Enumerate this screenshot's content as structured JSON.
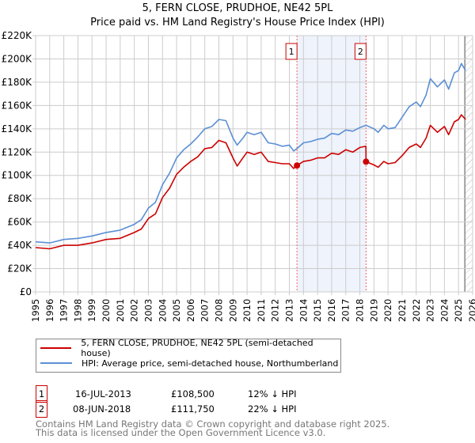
{
  "chart_data": {
    "type": "line",
    "title": "5, FERN CLOSE, PRUDHOE, NE42 5PL",
    "subtitle": "Price paid vs. HM Land Registry's House Price Index (HPI)",
    "xlabel": "",
    "ylabel": "",
    "xlim": [
      1995,
      2026
    ],
    "ylim": [
      0,
      220000
    ],
    "grid": true,
    "x_ticks": [
      "1995",
      "1996",
      "1997",
      "1998",
      "1999",
      "2000",
      "2001",
      "2002",
      "2003",
      "2004",
      "2005",
      "2006",
      "2007",
      "2008",
      "2009",
      "2010",
      "2011",
      "2012",
      "2013",
      "2014",
      "2015",
      "2016",
      "2017",
      "2018",
      "2019",
      "2020",
      "2021",
      "2022",
      "2023",
      "2024",
      "2025",
      "2026"
    ],
    "y_ticks": [
      {
        "v": 0,
        "label": "£0"
      },
      {
        "v": 20000,
        "label": "£20K"
      },
      {
        "v": 40000,
        "label": "£40K"
      },
      {
        "v": 60000,
        "label": "£60K"
      },
      {
        "v": 80000,
        "label": "£80K"
      },
      {
        "v": 100000,
        "label": "£100K"
      },
      {
        "v": 120000,
        "label": "£120K"
      },
      {
        "v": 140000,
        "label": "£140K"
      },
      {
        "v": 160000,
        "label": "£160K"
      },
      {
        "v": 180000,
        "label": "£180K"
      },
      {
        "v": 200000,
        "label": "£200K"
      },
      {
        "v": 220000,
        "label": "£220K"
      }
    ],
    "shaded_range": [
      2013.54,
      2018.44
    ],
    "hatched_from": 2025.45,
    "series": [
      {
        "name": "5, FERN CLOSE, PRUDHOE, NE42 5PL (semi-detached house)",
        "color": "#cc0000",
        "points": [
          [
            1995,
            38
          ],
          [
            1996,
            37
          ],
          [
            1997,
            40
          ],
          [
            1998,
            40
          ],
          [
            1999,
            42
          ],
          [
            2000,
            45
          ],
          [
            2001,
            46
          ],
          [
            2002,
            51
          ],
          [
            2002.5,
            54
          ],
          [
            2003,
            63
          ],
          [
            2003.5,
            67
          ],
          [
            2004,
            81
          ],
          [
            2004.5,
            89
          ],
          [
            2005,
            101
          ],
          [
            2005.5,
            107
          ],
          [
            2006,
            112
          ],
          [
            2006.5,
            116
          ],
          [
            2007,
            123
          ],
          [
            2007.5,
            124
          ],
          [
            2008,
            130
          ],
          [
            2008.5,
            128
          ],
          [
            2009,
            115
          ],
          [
            2009.3,
            108
          ],
          [
            2009.7,
            115
          ],
          [
            2010,
            120
          ],
          [
            2010.5,
            118
          ],
          [
            2011,
            120
          ],
          [
            2011.5,
            112
          ],
          [
            2012,
            111
          ],
          [
            2012.5,
            110
          ],
          [
            2013,
            110
          ],
          [
            2013.3,
            106
          ],
          [
            2013.54,
            108.5
          ],
          [
            2014,
            112
          ],
          [
            2014.5,
            113
          ],
          [
            2015,
            115
          ],
          [
            2015.5,
            115
          ],
          [
            2016,
            119
          ],
          [
            2016.5,
            118
          ],
          [
            2017,
            122
          ],
          [
            2017.5,
            120
          ],
          [
            2018,
            124
          ],
          [
            2018.43,
            125
          ],
          [
            2018.44,
            111.75
          ],
          [
            2019,
            109
          ],
          [
            2019.3,
            107
          ],
          [
            2019.7,
            112
          ],
          [
            2020,
            110
          ],
          [
            2020.5,
            111
          ],
          [
            2021,
            117
          ],
          [
            2021.5,
            124
          ],
          [
            2022,
            127
          ],
          [
            2022.3,
            124
          ],
          [
            2022.7,
            132
          ],
          [
            2023,
            143
          ],
          [
            2023.5,
            137
          ],
          [
            2024,
            142
          ],
          [
            2024.3,
            135
          ],
          [
            2024.7,
            146
          ],
          [
            2025,
            148
          ],
          [
            2025.2,
            152
          ],
          [
            2025.5,
            148
          ]
        ]
      },
      {
        "name": "HPI: Average price, semi-detached house, Northumberland",
        "color": "#5b8fd4",
        "points": [
          [
            1995,
            43
          ],
          [
            1996,
            42
          ],
          [
            1997,
            45
          ],
          [
            1998,
            46
          ],
          [
            1999,
            48
          ],
          [
            2000,
            51
          ],
          [
            2001,
            53
          ],
          [
            2002,
            58
          ],
          [
            2002.5,
            62
          ],
          [
            2003,
            72
          ],
          [
            2003.5,
            77
          ],
          [
            2004,
            92
          ],
          [
            2004.5,
            102
          ],
          [
            2005,
            115
          ],
          [
            2005.5,
            122
          ],
          [
            2006,
            127
          ],
          [
            2006.5,
            133
          ],
          [
            2007,
            140
          ],
          [
            2007.5,
            142
          ],
          [
            2008,
            148
          ],
          [
            2008.5,
            147
          ],
          [
            2009,
            132
          ],
          [
            2009.3,
            126
          ],
          [
            2009.7,
            132
          ],
          [
            2010,
            137
          ],
          [
            2010.5,
            135
          ],
          [
            2011,
            137
          ],
          [
            2011.5,
            128
          ],
          [
            2012,
            127
          ],
          [
            2012.5,
            125
          ],
          [
            2013,
            126
          ],
          [
            2013.3,
            121
          ],
          [
            2013.54,
            123
          ],
          [
            2014,
            128
          ],
          [
            2014.5,
            129
          ],
          [
            2015,
            131
          ],
          [
            2015.5,
            132
          ],
          [
            2016,
            136
          ],
          [
            2016.5,
            135
          ],
          [
            2017,
            139
          ],
          [
            2017.5,
            138
          ],
          [
            2018,
            141
          ],
          [
            2018.44,
            143
          ],
          [
            2019,
            140
          ],
          [
            2019.3,
            137
          ],
          [
            2019.7,
            143
          ],
          [
            2020,
            140
          ],
          [
            2020.5,
            141
          ],
          [
            2021,
            150
          ],
          [
            2021.5,
            159
          ],
          [
            2022,
            163
          ],
          [
            2022.3,
            159
          ],
          [
            2022.7,
            169
          ],
          [
            2023,
            183
          ],
          [
            2023.5,
            176
          ],
          [
            2024,
            182
          ],
          [
            2024.3,
            174
          ],
          [
            2024.7,
            188
          ],
          [
            2025,
            190
          ],
          [
            2025.2,
            196
          ],
          [
            2025.5,
            190
          ]
        ]
      }
    ],
    "point_units": "thousands GBP",
    "sales": [
      {
        "label": "1",
        "x": 2013.54,
        "value": 108500,
        "date": "16-JUL-2013",
        "price": "£108,500",
        "hpi_diff": "12% ↓ HPI"
      },
      {
        "label": "2",
        "x": 2018.44,
        "value": 111750,
        "date": "08-JUN-2018",
        "price": "£111,750",
        "hpi_diff": "22% ↓ HPI"
      }
    ],
    "legend": [
      "5, FERN CLOSE, PRUDHOE, NE42 5PL (semi-detached house)",
      "HPI: Average price, semi-detached house, Northumberland"
    ]
  },
  "footer": {
    "line1": "Contains HM Land Registry data © Crown copyright and database right 2025.",
    "line2": "This data is licensed under the Open Government Licence v3.0."
  }
}
